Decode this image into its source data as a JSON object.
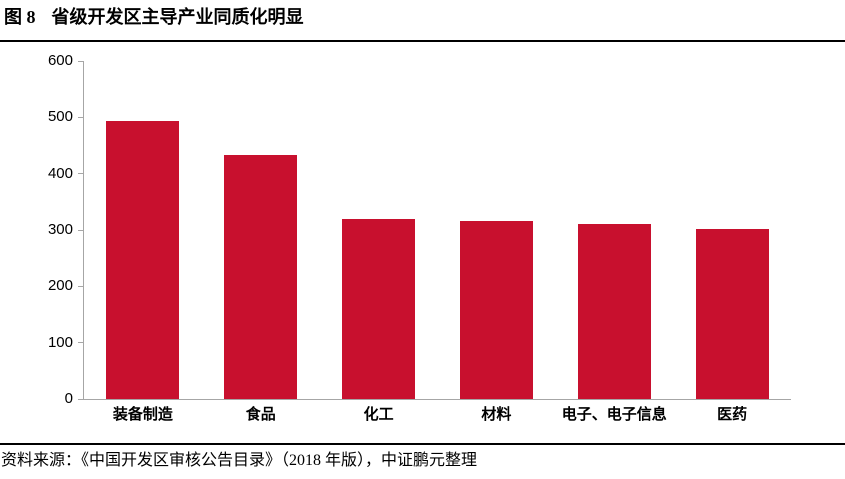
{
  "header": {
    "figure_label": "图 8",
    "figure_title": "省级开发区主导产业同质化明显"
  },
  "footer": {
    "source_text": "资料来源：《中国开发区审核公告目录》（2018 年版），中证鹏元整理"
  },
  "colors": {
    "bar": "#C8102E",
    "axis": "#A6A6A6",
    "text": "#000000",
    "rule": "#000000"
  },
  "chart_data": {
    "type": "bar",
    "title": "图 8 省级开发区主导产业同质化明显",
    "categories": [
      "装备制造",
      "食品",
      "化工",
      "材料",
      "电子、电子信息",
      "医药"
    ],
    "values": [
      493,
      434,
      320,
      316,
      310,
      302
    ],
    "xlabel": "",
    "ylabel": "",
    "ylim": [
      0,
      600
    ],
    "yticks": [
      0,
      100,
      200,
      300,
      400,
      500,
      600
    ],
    "grid": false,
    "legend": null,
    "bar_color": "#C8102E",
    "source": "资料来源：《中国开发区审核公告目录》（2018 年版），中证鹏元整理"
  }
}
